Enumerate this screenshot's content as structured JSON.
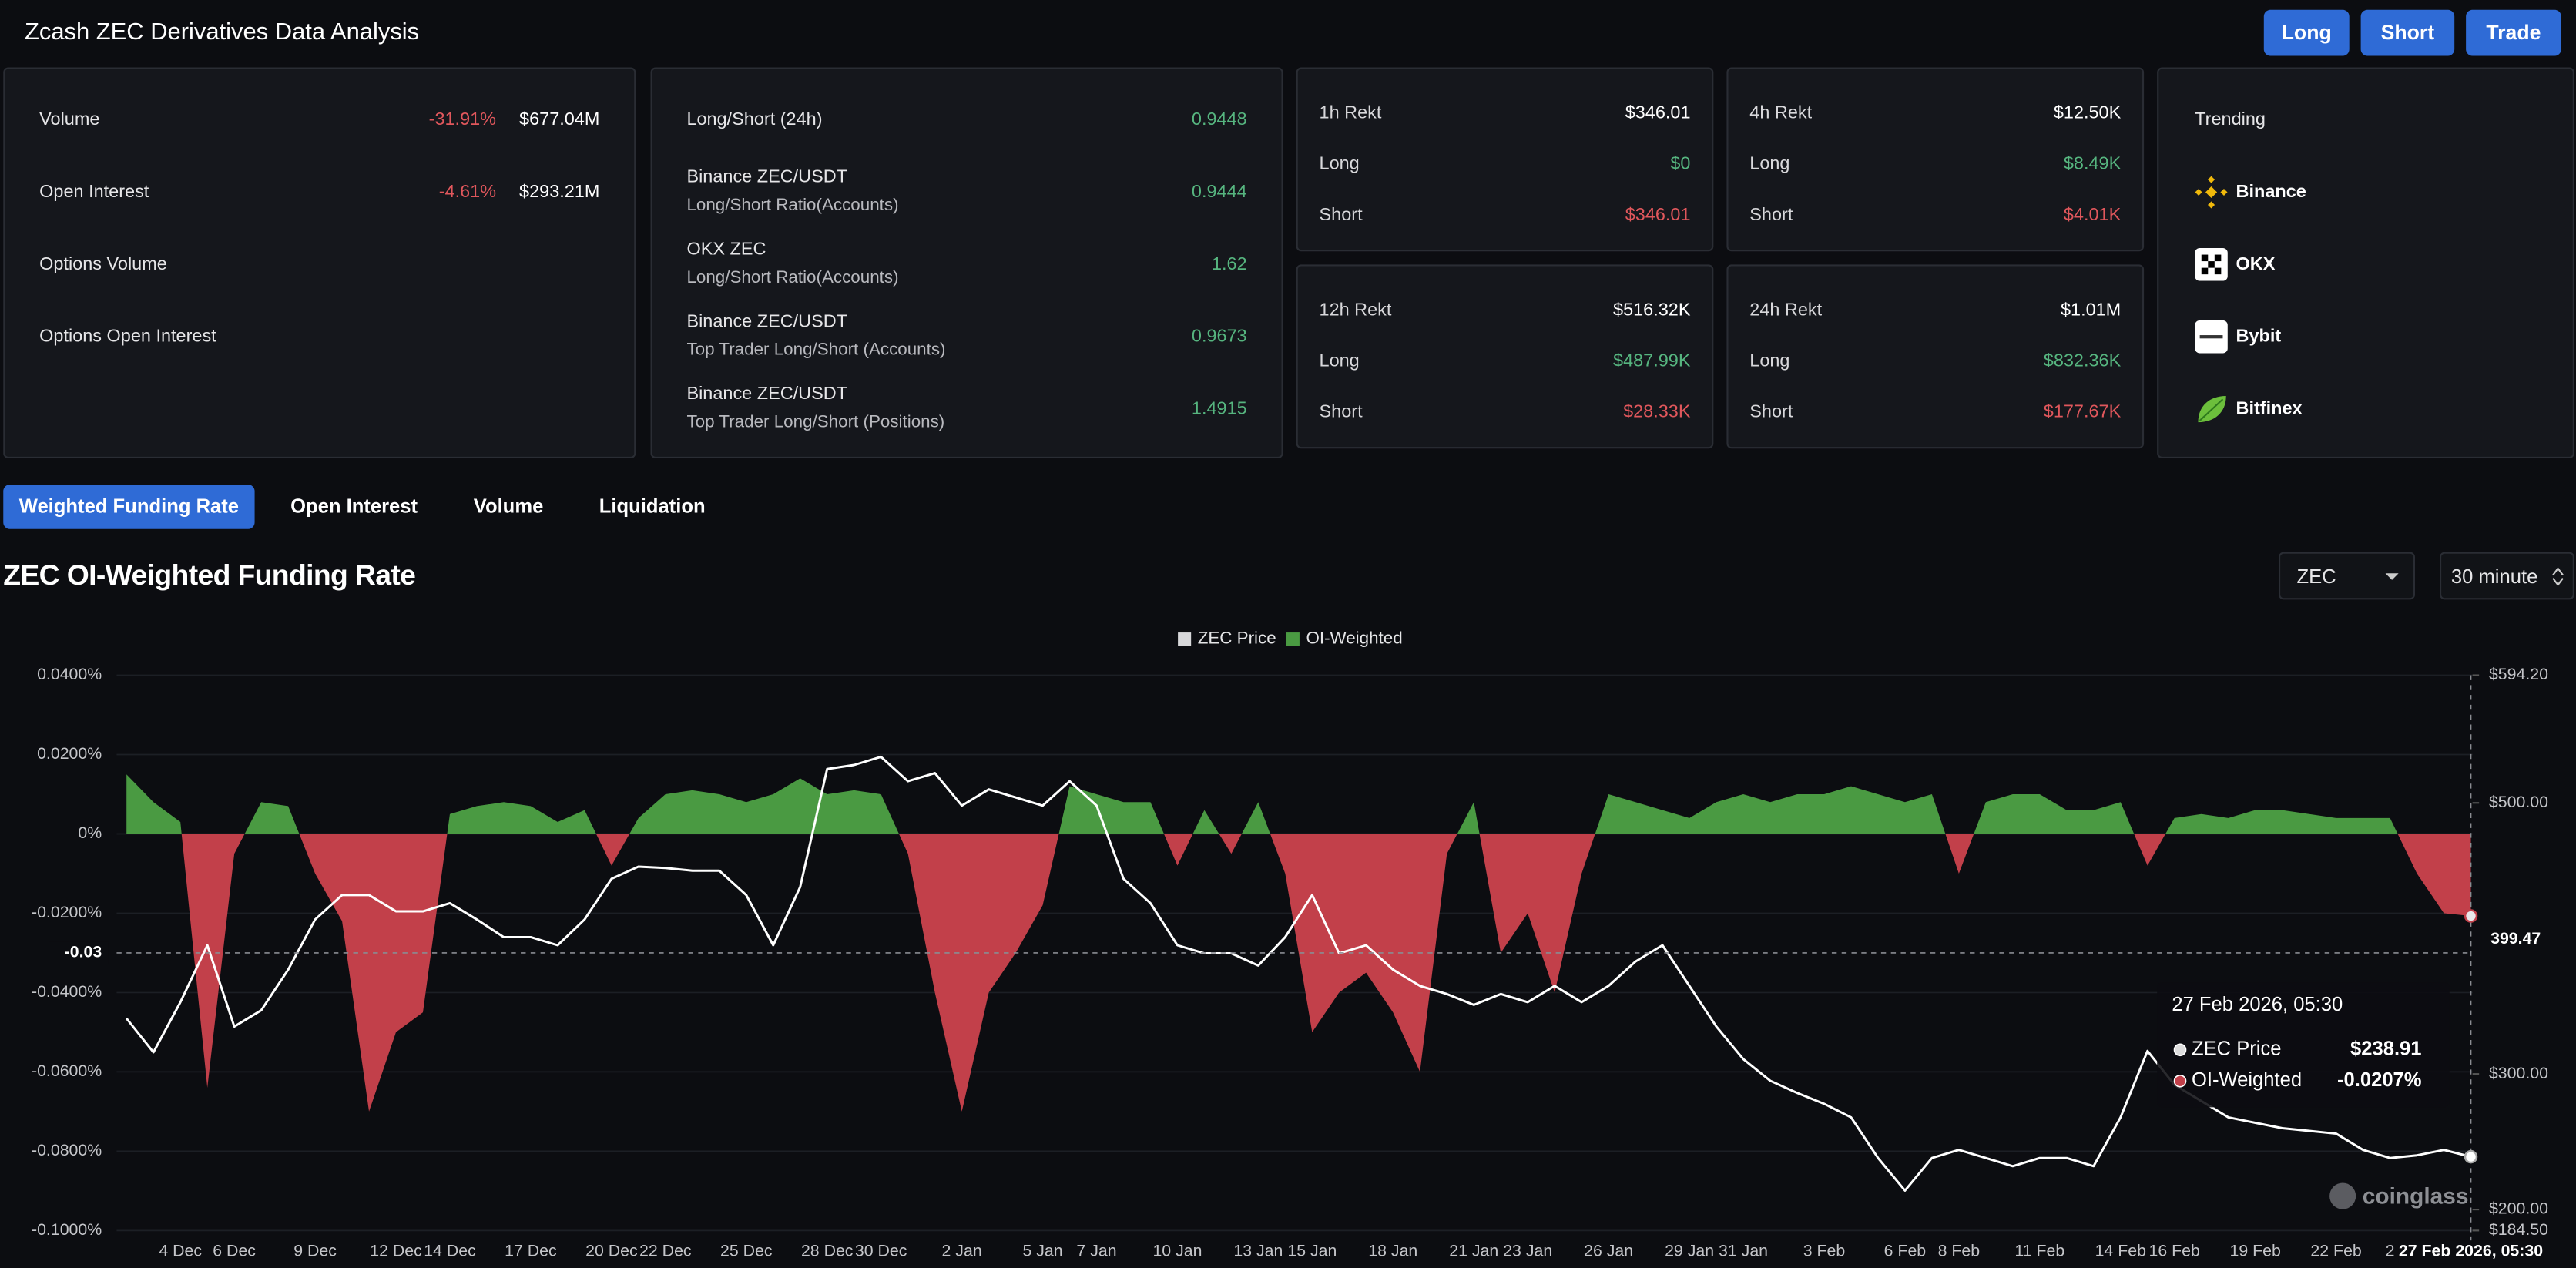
{
  "header": {
    "title": "Zcash ZEC Derivatives Data Analysis",
    "buttons": [
      "Long",
      "Short",
      "Trade"
    ]
  },
  "market_panel": {
    "rows": [
      {
        "label": "Volume",
        "change": "-31.91%",
        "value": "$677.04M"
      },
      {
        "label": "Open Interest",
        "change": "-4.61%",
        "value": "$293.21M"
      },
      {
        "label": "Options Volume"
      },
      {
        "label": "Options Open Interest"
      }
    ]
  },
  "ratio_panel": {
    "rows": [
      {
        "label": "Long/Short (24h)",
        "value": 0.9448
      },
      {
        "label": "Binance ZEC/USDT",
        "sublabel": "Long/Short Ratio(Accounts)",
        "value": 0.9444
      },
      {
        "label": "OKX ZEC",
        "sublabel": "Long/Short Ratio(Accounts)",
        "value": 1.62
      },
      {
        "label": "Binance ZEC/USDT",
        "sublabel": "Top Trader Long/Short (Accounts)",
        "value": 0.9673
      },
      {
        "label": "Binance ZEC/USDT",
        "sublabel": "Top Trader Long/Short (Positions)",
        "value": 1.4915
      }
    ]
  },
  "rekt_panels": [
    {
      "title": "1h Rekt",
      "total": "$346.01",
      "rows": [
        {
          "label": "Long",
          "value": "$0"
        },
        {
          "label": "Short",
          "value": "$346.01"
        }
      ]
    },
    {
      "title": "4h Rekt",
      "total": "$12.50K",
      "rows": [
        {
          "label": "Long",
          "value": "$8.49K"
        },
        {
          "label": "Short",
          "value": "$4.01K"
        }
      ]
    },
    {
      "title": "12h Rekt",
      "total": "$516.32K",
      "rows": [
        {
          "label": "Long",
          "value": "$487.99K"
        },
        {
          "label": "Short",
          "value": "$28.33K"
        }
      ]
    },
    {
      "title": "24h Rekt",
      "total": "$1.01M",
      "rows": [
        {
          "label": "Long",
          "value": "$832.36K"
        },
        {
          "label": "Short",
          "value": "$177.67K"
        }
      ]
    }
  ],
  "trending": {
    "title": "Trending",
    "exchanges": [
      "Binance",
      "OKX",
      "Bybit",
      "Bitfinex"
    ]
  },
  "tabs": [
    "Weighted Funding Rate",
    "Open Interest",
    "Volume",
    "Liquidation"
  ],
  "selectors": [
    "ZEC",
    "30 minute"
  ],
  "chart_data": {
    "type": "line",
    "title": "ZEC OI-Weighted Funding Rate",
    "legend": "top",
    "grid": true,
    "categories": [
      null,
      null,
      "4 Dec",
      null,
      "6 Dec",
      null,
      null,
      "9 Dec",
      null,
      null,
      "12 Dec",
      null,
      "14 Dec",
      null,
      null,
      "17 Dec",
      null,
      null,
      "20 Dec",
      null,
      "22 Dec",
      null,
      null,
      "25 Dec",
      null,
      null,
      "28 Dec",
      null,
      "30 Dec",
      null,
      null,
      "2 Jan",
      null,
      null,
      "5 Jan",
      null,
      "7 Jan",
      null,
      null,
      "10 Jan",
      null,
      null,
      "13 Jan",
      null,
      "15 Jan",
      null,
      null,
      "18 Jan",
      null,
      null,
      "21 Jan",
      null,
      "23 Jan",
      null,
      null,
      "26 Jan",
      null,
      null,
      "29 Jan",
      null,
      "31 Jan",
      null,
      null,
      "3 Feb",
      null,
      null,
      "6 Feb",
      null,
      "8 Feb",
      null,
      null,
      "11 Feb",
      null,
      null,
      "14 Feb",
      null,
      "16 Feb",
      null,
      null,
      "19 Feb",
      null,
      null,
      "22 Feb",
      null,
      "2",
      null,
      null,
      null
    ],
    "series": [
      {
        "name": "ZEC Price",
        "type": "line",
        "axis": "y2",
        "color": "#ffffff",
        "values": [
          341,
          316,
          353,
          395,
          335,
          347,
          377,
          414,
          432,
          432,
          420,
          420,
          426,
          414,
          401,
          401,
          395,
          414,
          444,
          453,
          452,
          450,
          450,
          432,
          395,
          438,
          525,
          528,
          534,
          516,
          522,
          498,
          510,
          504,
          498,
          516,
          498,
          444,
          426,
          395,
          389,
          389,
          380,
          401,
          432,
          389,
          395,
          377,
          365,
          359,
          351,
          359,
          353,
          365,
          353,
          365,
          383,
          395,
          365,
          335,
          311,
          295,
          286,
          278,
          268,
          238,
          214,
          238,
          244,
          238,
          232,
          238,
          238,
          232,
          268,
          317,
          292,
          280,
          268,
          264,
          260,
          258,
          256,
          244,
          238,
          240,
          244,
          238.91
        ]
      },
      {
        "name": "OI-Weighted",
        "type": "area",
        "axis": "y",
        "color": "#4a9a42",
        "negative_color": "#c2404a",
        "values": [
          0.015,
          0.008,
          0.003,
          -0.064,
          -0.005,
          0.008,
          0.007,
          -0.01,
          -0.022,
          -0.07,
          -0.05,
          -0.045,
          0.005,
          0.007,
          0.008,
          0.007,
          0.003,
          0.006,
          -0.008,
          0.004,
          0.01,
          0.011,
          0.01,
          0.008,
          0.01,
          0.014,
          0.01,
          0.011,
          0.01,
          -0.005,
          -0.04,
          -0.07,
          -0.04,
          -0.03,
          -0.018,
          0.012,
          0.01,
          0.008,
          0.008,
          -0.008,
          0.006,
          -0.005,
          0.008,
          -0.01,
          -0.05,
          -0.04,
          -0.035,
          -0.045,
          -0.06,
          -0.005,
          0.008,
          -0.03,
          -0.02,
          -0.04,
          -0.01,
          0.01,
          0.008,
          0.006,
          0.004,
          0.008,
          0.01,
          0.008,
          0.01,
          0.01,
          0.012,
          0.01,
          0.008,
          0.01,
          -0.01,
          0.008,
          0.01,
          0.01,
          0.006,
          0.006,
          0.008,
          -0.008,
          0.004,
          0.005,
          0.004,
          0.006,
          0.006,
          0.005,
          0.004,
          0.004,
          0.004,
          -0.01,
          -0.02,
          -0.0207
        ]
      }
    ],
    "ylim": [
      -0.1,
      0.04
    ],
    "yticks": [
      {
        "value": 0.04,
        "label": "0.0400%"
      },
      {
        "value": 0.02,
        "label": "0.0200%"
      },
      {
        "value": 0,
        "label": "0%"
      },
      {
        "value": -0.02,
        "label": "-0.0200%"
      },
      {
        "value": -0.04,
        "label": "-0.0400%"
      },
      {
        "value": -0.06,
        "label": "-0.0600%"
      },
      {
        "value": -0.08,
        "label": "-0.0800%"
      },
      {
        "value": -0.1,
        "label": "-0.1000%"
      }
    ],
    "y2lim": [
      184.5,
      594.2
    ],
    "y2ticks": [
      {
        "value": 594.2,
        "label": "$594.20"
      },
      {
        "value": 500,
        "label": "$500.00"
      },
      {
        "value": 300,
        "label": "$300.00"
      },
      {
        "value": 200,
        "label": "$200.00"
      },
      {
        "value": 184.5,
        "label": "$184.50"
      }
    ],
    "crosshair": {
      "x_label": "27 Feb 2026, 05:30",
      "y": -0.03,
      "y2": 399.47
    },
    "tooltip": {
      "title": "27 Feb 2026, 05:30",
      "values": [
        "$238.91",
        "-0.0207%"
      ]
    },
    "watermark": "coinglass"
  }
}
